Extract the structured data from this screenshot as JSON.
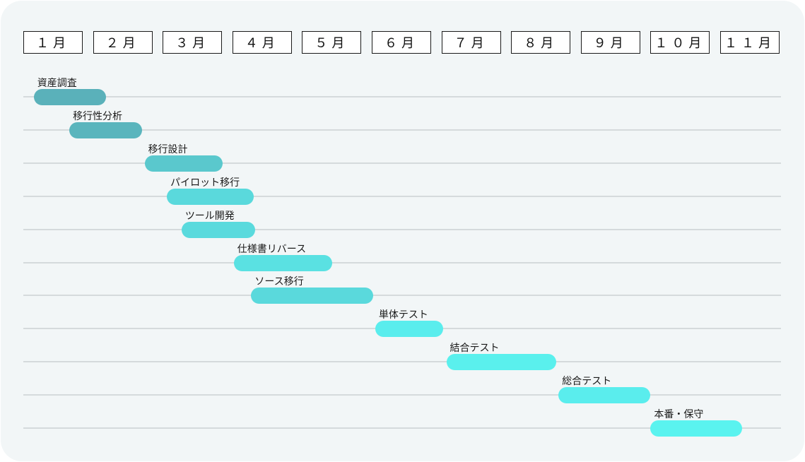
{
  "chart_data": {
    "type": "gantt",
    "months": [
      "１月",
      "２月",
      "３月",
      "４月",
      "５月",
      "６月",
      "７月",
      "８月",
      "９月",
      "１０月",
      "１１月"
    ],
    "tasks": [
      {
        "name": "資産調査",
        "start": 0.15,
        "end": 1.19,
        "color": "#5ab1ba"
      },
      {
        "name": "移行性分析",
        "start": 0.66,
        "end": 1.7,
        "color": "#5ab5bd"
      },
      {
        "name": "移行設計",
        "start": 1.74,
        "end": 2.86,
        "color": "#5ac8cd"
      },
      {
        "name": "パイロット移行",
        "start": 2.06,
        "end": 3.31,
        "color": "#5ad9dc"
      },
      {
        "name": "ツール開発",
        "start": 2.27,
        "end": 3.33,
        "color": "#5adadd"
      },
      {
        "name": "仕様書リバース",
        "start": 3.02,
        "end": 4.43,
        "color": "#5ae1e2"
      },
      {
        "name": "ソース移行",
        "start": 3.27,
        "end": 5.02,
        "color": "#5ad9dc"
      },
      {
        "name": "単体テスト",
        "start": 5.05,
        "end": 6.02,
        "color": "#5aeded"
      },
      {
        "name": "結合テスト",
        "start": 6.07,
        "end": 7.65,
        "color": "#5af0ed"
      },
      {
        "name": "総合テスト",
        "start": 7.68,
        "end": 9.0,
        "color": "#5aeded"
      },
      {
        "name": "本番・保守",
        "start": 9.0,
        "end": 10.31,
        "color": "#5af3ef"
      }
    ]
  }
}
